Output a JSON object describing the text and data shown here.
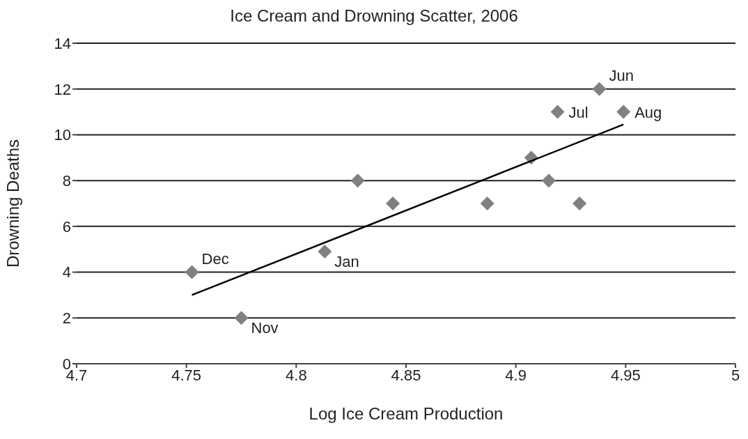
{
  "chart_data": {
    "type": "scatter",
    "title": "Ice Cream and Drowning Scatter, 2006",
    "xlabel": "Log Ice Cream Production",
    "ylabel": "Drowning Deaths",
    "xlim": [
      4.7,
      5
    ],
    "xticks": [
      4.7,
      4.75,
      4.8,
      4.85,
      4.9,
      4.95,
      5
    ],
    "ylim": [
      0,
      14
    ],
    "yticks": [
      0,
      2,
      4,
      6,
      8,
      10,
      12,
      14
    ],
    "grid": "y",
    "marker": "diamond",
    "series": [
      {
        "color": "#808080",
        "x": [
          4.7525,
          4.775,
          4.813,
          4.828,
          4.844,
          4.887,
          4.907,
          4.915,
          4.929,
          4.919,
          4.938,
          4.949
        ],
        "values": [
          4,
          2,
          4.9,
          8,
          7,
          7,
          9,
          8,
          7,
          11,
          12,
          11
        ],
        "value_labels": [
          "Dec",
          "Nov",
          "Jan",
          null,
          null,
          null,
          null,
          null,
          null,
          "Jul",
          "Jun",
          "Aug"
        ]
      },
      {
        "type": "line",
        "color": "#000000",
        "x": [
          4.7525,
          4.949
        ],
        "values": [
          3.0,
          10.45
        ],
        "line_style": "solid",
        "marker": "none"
      }
    ]
  }
}
